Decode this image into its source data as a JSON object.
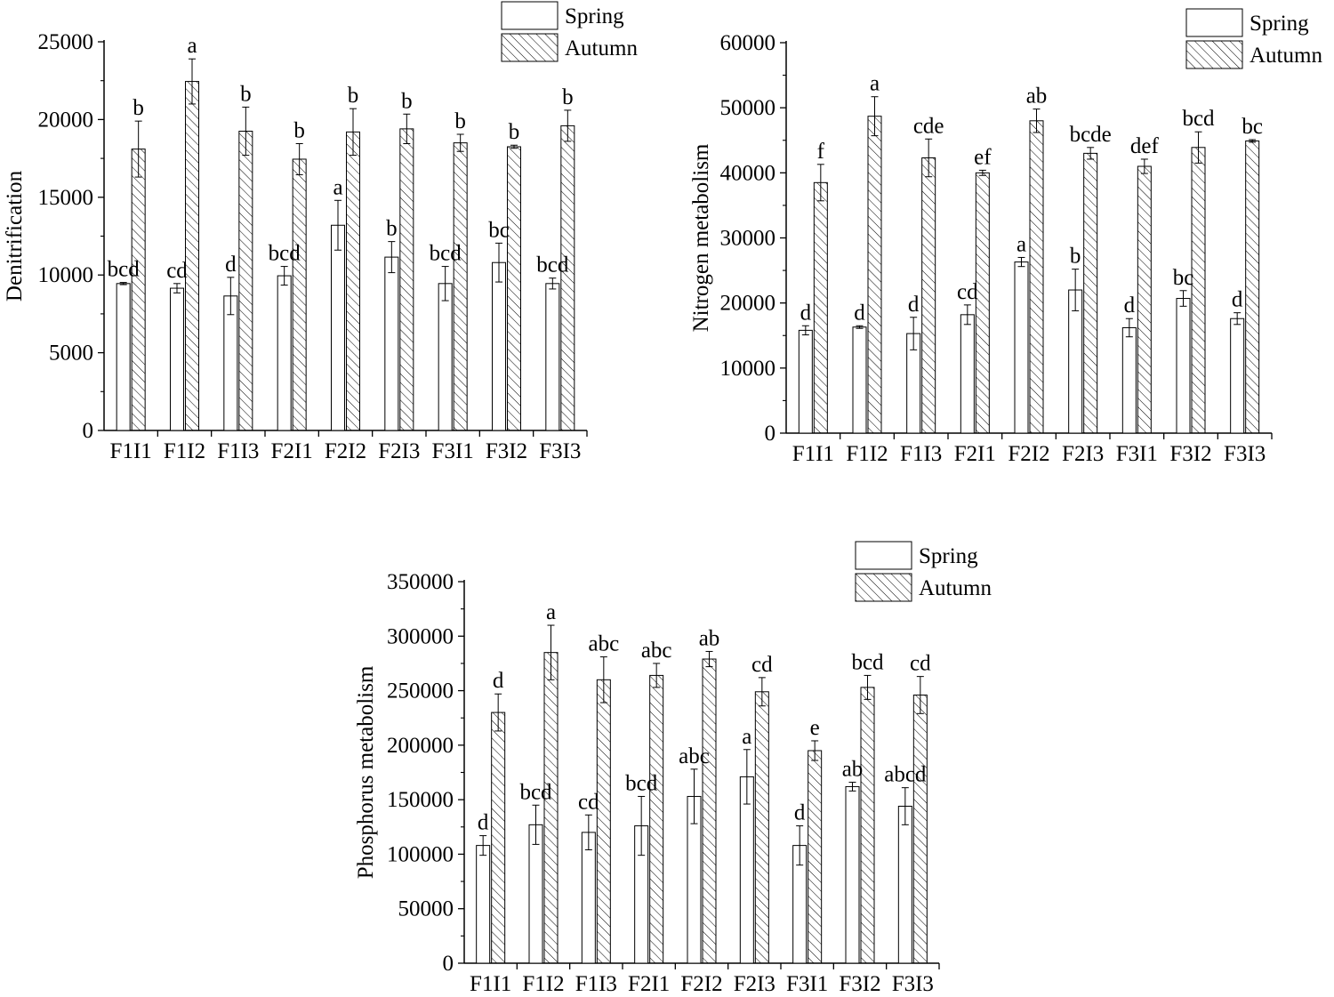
{
  "chart_data": [
    {
      "type": "bar",
      "ylabel": "Denitrification",
      "xlabel": "",
      "ylim": [
        0,
        25000
      ],
      "yticks": [
        0,
        5000,
        10000,
        15000,
        20000,
        25000
      ],
      "categories": [
        "F1I1",
        "F1I2",
        "F1I3",
        "F2I1",
        "F2I2",
        "F2I3",
        "F3I1",
        "F3I2",
        "F3I3"
      ],
      "legend": [
        "Spring",
        "Autumn"
      ],
      "legend_position": "top-right",
      "series": [
        {
          "name": "Spring",
          "pattern": "open",
          "values": [
            9450,
            9150,
            8650,
            9950,
            13200,
            11150,
            9450,
            10800,
            9450
          ],
          "errors": [
            70,
            300,
            1200,
            600,
            1600,
            1000,
            1100,
            1250,
            350
          ],
          "letters": [
            "bcd",
            "cd",
            "d",
            "bcd",
            "a",
            "b",
            "bcd",
            "bc",
            "bcd"
          ]
        },
        {
          "name": "Autumn",
          "pattern": "hatched",
          "values": [
            18100,
            22450,
            19250,
            17450,
            19200,
            19400,
            18500,
            18250,
            19600
          ],
          "errors": [
            1800,
            1450,
            1550,
            1000,
            1500,
            950,
            550,
            100,
            1000
          ],
          "letters": [
            "b",
            "a",
            "b",
            "b",
            "b",
            "b",
            "b",
            "b",
            "b"
          ]
        }
      ]
    },
    {
      "type": "bar",
      "ylabel": "Nitrogen metabolism",
      "xlabel": "",
      "ylim": [
        0,
        60000
      ],
      "yticks": [
        0,
        10000,
        20000,
        30000,
        40000,
        50000,
        60000
      ],
      "categories": [
        "F1I1",
        "F1I2",
        "F1I3",
        "F2I1",
        "F2I2",
        "F2I3",
        "F3I1",
        "F3I2",
        "F3I3"
      ],
      "legend": [
        "Spring",
        "Autumn"
      ],
      "legend_position": "top-right",
      "series": [
        {
          "name": "Spring",
          "pattern": "open",
          "values": [
            15800,
            16300,
            15300,
            18200,
            26300,
            22000,
            16200,
            20700,
            17600
          ],
          "errors": [
            700,
            200,
            2500,
            1500,
            700,
            3200,
            1400,
            1200,
            900
          ],
          "letters": [
            "d",
            "d",
            "d",
            "cd",
            "a",
            "b",
            "d",
            "bc",
            "d"
          ]
        },
        {
          "name": "Autumn",
          "pattern": "hatched",
          "values": [
            38500,
            48700,
            42300,
            40000,
            48000,
            43000,
            41000,
            43900,
            44900
          ],
          "errors": [
            2800,
            3000,
            2900,
            400,
            1800,
            900,
            1100,
            2400,
            200
          ],
          "letters": [
            "f",
            "a",
            "cde",
            "ef",
            "ab",
            "bcde",
            "def",
            "bcd",
            "bc"
          ]
        }
      ]
    },
    {
      "type": "bar",
      "ylabel": "Phosphorus metabolism",
      "xlabel": "",
      "ylim": [
        0,
        350000
      ],
      "yticks": [
        0,
        50000,
        100000,
        150000,
        200000,
        250000,
        300000,
        350000
      ],
      "categories": [
        "F1I1",
        "F1I2",
        "F1I3",
        "F2I1",
        "F2I2",
        "F2I3",
        "F3I1",
        "F3I2",
        "F3I3"
      ],
      "legend": [
        "Spring",
        "Autumn"
      ],
      "legend_position": "top-right",
      "series": [
        {
          "name": "Spring",
          "pattern": "open",
          "values": [
            108000,
            127000,
            120000,
            126000,
            153000,
            171000,
            108000,
            162000,
            144000
          ],
          "errors": [
            9000,
            18000,
            16000,
            27000,
            25000,
            25000,
            18000,
            4000,
            17000
          ],
          "letters": [
            "d",
            "bcd",
            "cd",
            "bcd",
            "abc",
            "a",
            "d",
            "ab",
            "abcd"
          ]
        },
        {
          "name": "Autumn",
          "pattern": "hatched",
          "values": [
            230000,
            285000,
            260000,
            264000,
            279000,
            249000,
            195000,
            253000,
            246000
          ],
          "errors": [
            17000,
            25000,
            21000,
            11000,
            7000,
            13000,
            9000,
            11000,
            17000
          ],
          "letters": [
            "d",
            "a",
            "abc",
            "abc",
            "ab",
            "cd",
            "e",
            "bcd",
            "cd"
          ]
        }
      ]
    }
  ]
}
